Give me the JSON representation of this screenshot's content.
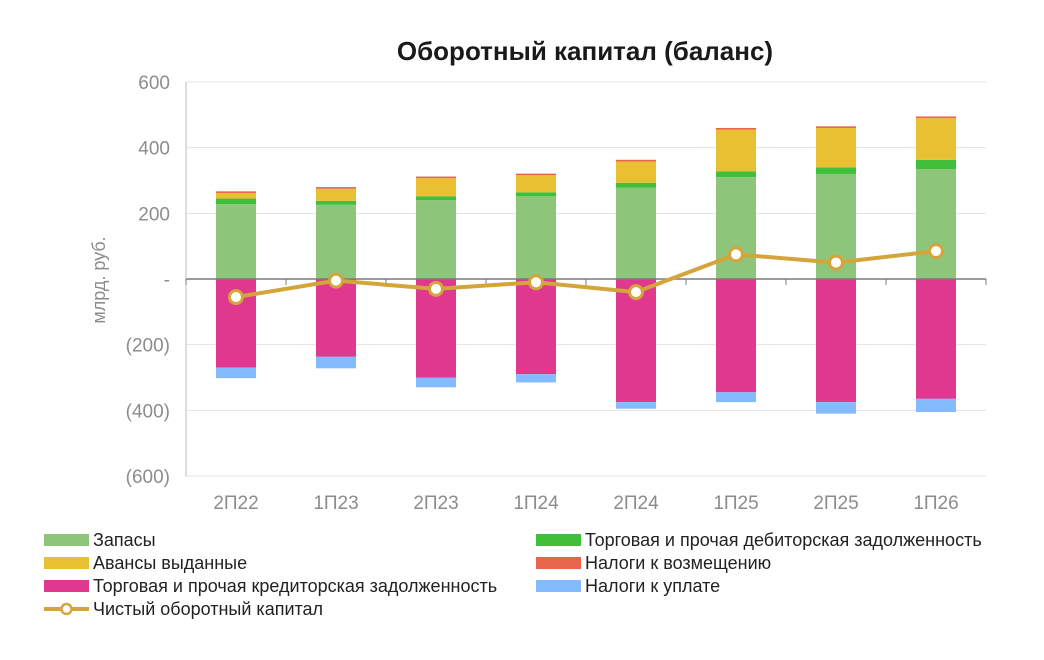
{
  "chart_data": {
    "type": "bar",
    "stacked": true,
    "title": "Оборотный капитал (баланс)",
    "xlabel": "",
    "ylabel": "млрд. руб.",
    "ylim": [
      -600,
      600
    ],
    "yticks": [
      600,
      400,
      200,
      0,
      -200,
      -400,
      -600
    ],
    "ytick_labels": [
      "600",
      "400",
      "200",
      "-",
      "(200)",
      "(400)",
      "(600)"
    ],
    "grid": true,
    "legend_position": "bottom",
    "categories": [
      "2П22",
      "1П23",
      "2П23",
      "1П24",
      "2П24",
      "1П25",
      "2П25",
      "1П26"
    ],
    "series": [
      {
        "name": "Запасы",
        "kind": "bar",
        "color": "#8dc67b",
        "values": [
          228,
          226,
          240,
          252,
          278,
          310,
          320,
          335
        ]
      },
      {
        "name": "Торговая и прочая дебиторская задолженность",
        "kind": "bar",
        "color": "#3fbf3a",
        "values": [
          17,
          12,
          12,
          12,
          15,
          18,
          20,
          28
        ]
      },
      {
        "name": "Авансы выданные",
        "kind": "bar",
        "color": "#e8c031",
        "values": [
          17,
          37,
          55,
          52,
          65,
          127,
          120,
          127
        ]
      },
      {
        "name": "Налоги к возмещению",
        "kind": "bar",
        "color": "#e8644a",
        "values": [
          5,
          5,
          5,
          5,
          5,
          5,
          5,
          5
        ]
      },
      {
        "name": "Торговая и прочая кредиторская задолженность",
        "kind": "bar",
        "color": "#e0378f",
        "values": [
          -270,
          -237,
          -300,
          -290,
          -375,
          -345,
          -375,
          -365
        ]
      },
      {
        "name": "Налоги к уплате",
        "kind": "bar",
        "color": "#84bbff",
        "values": [
          -32,
          -35,
          -30,
          -25,
          -20,
          -30,
          -35,
          -40
        ]
      },
      {
        "name": "Чистый оборотный капитал",
        "kind": "line",
        "color": "#d3a53a",
        "values": [
          -55,
          -5,
          -30,
          -10,
          -40,
          75,
          50,
          85
        ]
      }
    ]
  }
}
